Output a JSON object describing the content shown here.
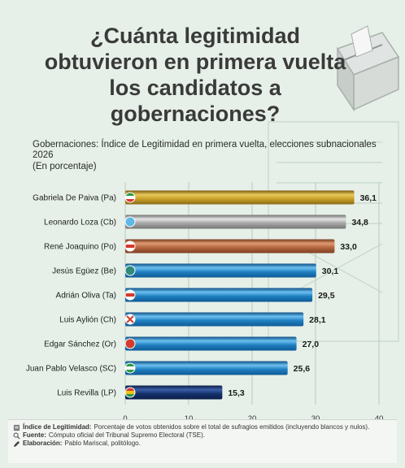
{
  "header": {
    "title": "¿Cuánta legitimidad obtuvieron en primera vuelta los candidatos a gobernaciones?"
  },
  "chart_data": {
    "type": "bar",
    "orientation": "horizontal",
    "title": "Gobernaciones: Índice de Legitimidad en primera vuelta, elecciones subnacionales 2026",
    "unit_label": "(En porcentaje)",
    "categories": [
      "Gabriela De Paiva (Pa)",
      "Leonardo Loza (Cb)",
      "René Joaquino (Po)",
      "Jesús Egüez (Be)",
      "Adrián Oliva (Ta)",
      "Luis Aylión (Ch)",
      "Edgar Sánchez (Or)",
      "Juan Pablo Velasco (SC)",
      "Luis Revilla (LP)"
    ],
    "values": [
      36.1,
      34.8,
      33.0,
      30.1,
      29.5,
      28.1,
      27.0,
      25.6,
      15.3
    ],
    "value_labels": [
      "36,1",
      "34,8",
      "33,0",
      "30,1",
      "29,5",
      "28,1",
      "27,0",
      "25,6",
      "15,3"
    ],
    "bar_styles": [
      "gold",
      "silver",
      "bronze",
      "blue",
      "blue",
      "blue",
      "blue",
      "blue",
      "navy"
    ],
    "x_ticks": [
      "0",
      "10",
      "20",
      "30",
      "40"
    ],
    "xlim": [
      0,
      40
    ],
    "grid": true,
    "colors": {
      "gold": "#c9a227",
      "silver": "#a6a6a6",
      "bronze": "#b5673f",
      "blue": "#1f7fc0",
      "navy": "#14306a",
      "teal": "#2f8a7a",
      "red": "#d43a2f",
      "green": "#2e9a48",
      "sky": "#5fb8e8",
      "yellow": "#f2c418"
    }
  },
  "footer": {
    "legitimidad_label": "Índice de Legitimidad:",
    "legitimidad_text": "Porcentaje de votos obtenidos sobre el total de sufragios emitidos (incluyendo blancos y nulos).",
    "fuente_label": "Fuente:",
    "fuente_text": "Cómputo oficial del Tribunal Supremo Electoral (TSE).",
    "elaboracion_label": "Elaboración:",
    "elaboracion_text": "Pablo Mariscal, politólogo."
  }
}
